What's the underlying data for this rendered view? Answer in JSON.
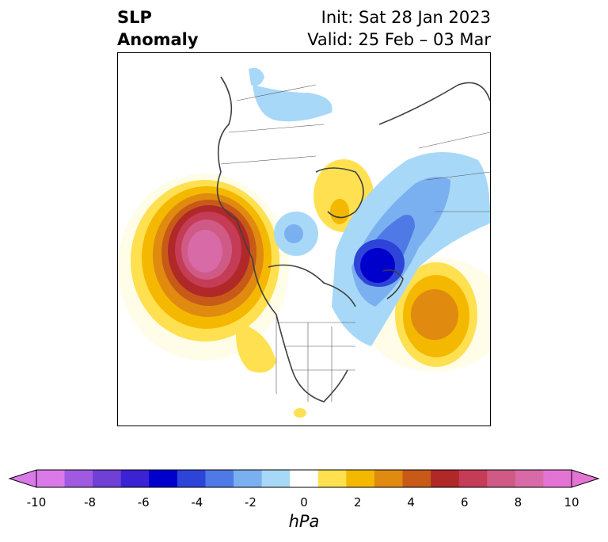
{
  "title": {
    "left_line1": "SLP",
    "left_line2": "Anomaly",
    "right_line1": "Init: Sat 28 Jan 2023",
    "right_line2": "Valid: 25 Feb – 03 Mar"
  },
  "colorbar": {
    "unit": "hPa",
    "ticks": [
      "-10",
      "-8",
      "-6",
      "-4",
      "-2",
      "0",
      "2",
      "4",
      "6",
      "8",
      "10"
    ],
    "colors": [
      "#d97ae8",
      "#a05ae0",
      "#6f3fd6",
      "#3b22d2",
      "#0000cc",
      "#2e44d8",
      "#4f7ae6",
      "#7bb0f0",
      "#a8d8f8",
      "#ffffff",
      "#ffe050",
      "#f5b800",
      "#e08a10",
      "#c85a18",
      "#b02828",
      "#c43c55",
      "#cf5a85",
      "#d96aa8",
      "#e474d4"
    ],
    "under_color": "#d97ae8",
    "over_color": "#e474d4"
  },
  "map": {
    "field": "SLP anomaly",
    "features": [
      {
        "name": "positive-anomaly-north-pacific",
        "peak_hpa": 10
      },
      {
        "name": "positive-anomaly-north-atlantic",
        "peak_hpa": 4
      },
      {
        "name": "positive-anomaly-barents",
        "peak_hpa": 2
      },
      {
        "name": "negative-anomaly-greenland",
        "peak_hpa": -6
      },
      {
        "name": "negative-anomaly-siberia",
        "peak_hpa": -2
      },
      {
        "name": "negative-anomaly-beaufort",
        "peak_hpa": -2
      }
    ]
  }
}
